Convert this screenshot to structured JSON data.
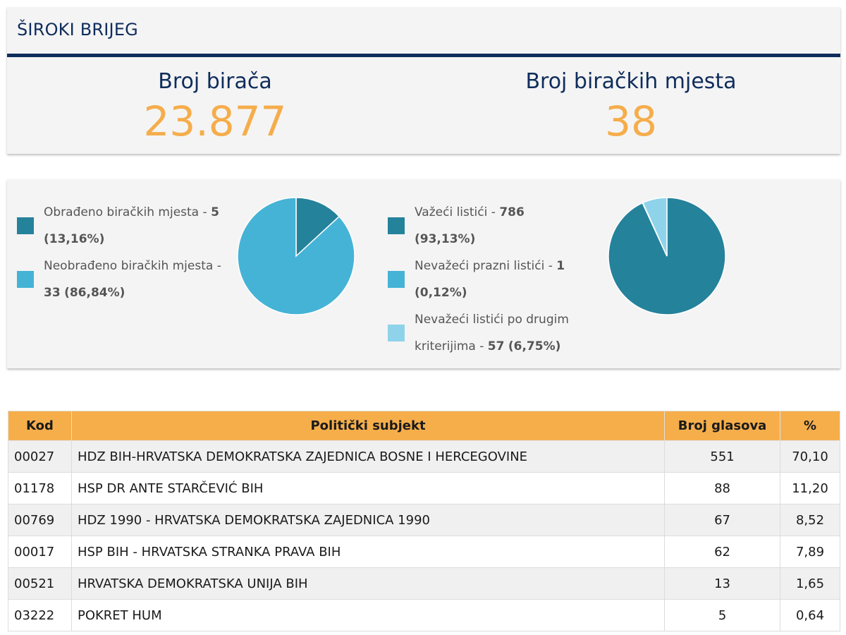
{
  "header": {
    "title": "ŠIROKI BRIJEG",
    "voters_label": "Broj birača",
    "voters_value": "23.877",
    "stations_label": "Broj biračkih mjesta",
    "stations_value": "38"
  },
  "colors": {
    "navy": "#0f2d5c",
    "orange": "#f5ad4b",
    "teal_dark": "#25829b",
    "teal_mid": "#45b3d6",
    "teal_light": "#8fd3ea"
  },
  "chart_data": [
    {
      "type": "pie",
      "slices": [
        {
          "label": "Obrađeno biračkih mjesta",
          "count": "5",
          "percent": "(13,16%)",
          "value": 13.16,
          "color": "#25829b"
        },
        {
          "label": "Neobrađeno biračkih mjesta",
          "count": "33",
          "percent": "(86,84%)",
          "value": 86.84,
          "color": "#45b3d6"
        }
      ],
      "legend_position": "left"
    },
    {
      "type": "pie",
      "slices": [
        {
          "label": "Važeći listići",
          "count": "786",
          "percent": "(93,13%)",
          "value": 93.13,
          "color": "#25829b"
        },
        {
          "label": "Nevažeći prazni listići",
          "count": "1",
          "percent": "(0,12%)",
          "value": 0.12,
          "color": "#45b3d6"
        },
        {
          "label": "Nevažeći listići po drugim kriterijima",
          "count": "57",
          "percent": "(6,75%)",
          "value": 6.75,
          "color": "#8fd3ea"
        }
      ],
      "legend_position": "left"
    }
  ],
  "table": {
    "headers": {
      "code": "Kod",
      "party": "Politički subjekt",
      "votes": "Broj glasova",
      "percent": "%"
    },
    "rows": [
      {
        "code": "00027",
        "party": "HDZ BIH-HRVATSKA DEMOKRATSKA ZAJEDNICA BOSNE I HERCEGOVINE",
        "votes": "551",
        "percent": "70,10"
      },
      {
        "code": "01178",
        "party": "HSP DR ANTE STARČEVIĆ BIH",
        "votes": "88",
        "percent": "11,20"
      },
      {
        "code": "00769",
        "party": "HDZ 1990 - HRVATSKA DEMOKRATSKA ZAJEDNICA 1990",
        "votes": "67",
        "percent": "8,52"
      },
      {
        "code": "00017",
        "party": "HSP BIH - HRVATSKA STRANKA PRAVA BIH",
        "votes": "62",
        "percent": "7,89"
      },
      {
        "code": "00521",
        "party": "HRVATSKA DEMOKRATSKA UNIJA BIH",
        "votes": "13",
        "percent": "1,65"
      },
      {
        "code": "03222",
        "party": "POKRET HUM",
        "votes": "5",
        "percent": "0,64"
      }
    ]
  }
}
